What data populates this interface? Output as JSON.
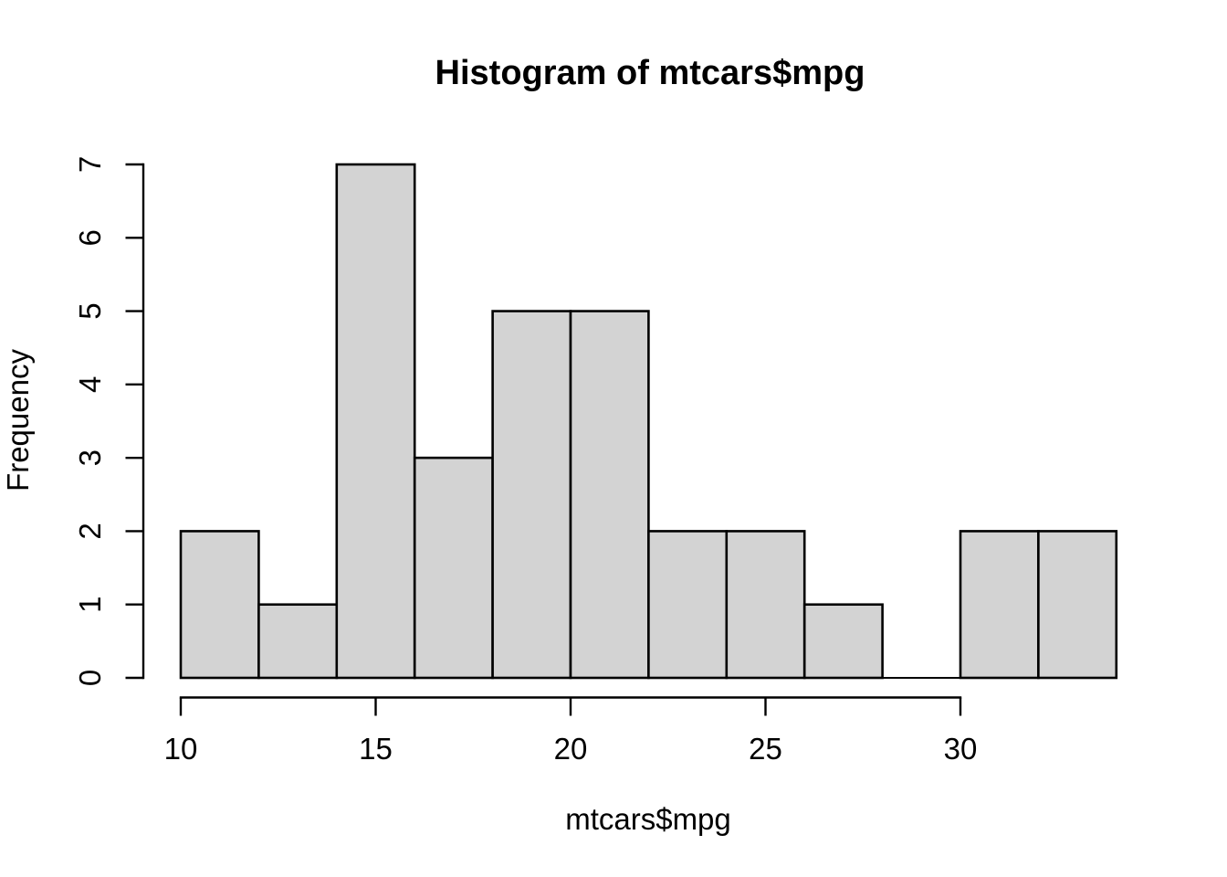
{
  "chart_data": {
    "type": "bar",
    "chart_kind": "histogram",
    "title": "Histogram of mtcars$mpg",
    "xlabel": "mtcars$mpg",
    "ylabel": "Frequency",
    "breaks": [
      10,
      12,
      14,
      16,
      18,
      20,
      22,
      24,
      26,
      28,
      30,
      32,
      34
    ],
    "counts": [
      2,
      1,
      7,
      3,
      5,
      5,
      2,
      2,
      1,
      0,
      2,
      2
    ],
    "x_ticks": [
      10,
      15,
      20,
      25,
      30
    ],
    "y_ticks": [
      0,
      1,
      2,
      3,
      4,
      5,
      6,
      7
    ],
    "xlim": [
      10,
      34
    ],
    "ylim": [
      0,
      7
    ],
    "grid": false,
    "legend": false,
    "bar_fill": "#D3D3D3",
    "bar_stroke": "#000000",
    "axis_color": "#000000",
    "text_color": "#000000",
    "background": "#FFFFFF"
  }
}
